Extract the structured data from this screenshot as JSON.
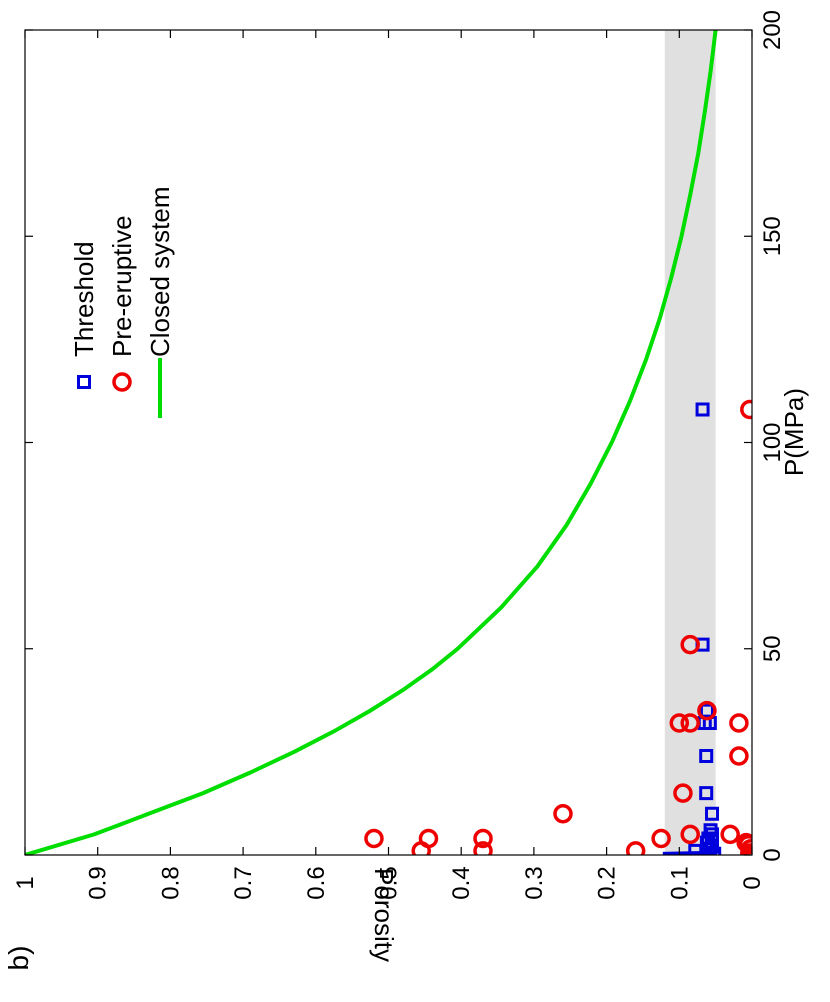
{
  "panel_label": "b)",
  "chart_data": {
    "type": "scatter",
    "orientation": "rotated-90-ccw",
    "title": "",
    "xlabel": "P(MPa)",
    "ylabel": "Porosity",
    "xlim": [
      0,
      200
    ],
    "ylim": [
      0,
      1
    ],
    "x_ticks": [
      0,
      50,
      100,
      150,
      200
    ],
    "y_ticks": [
      0,
      0.1,
      0.2,
      0.3,
      0.4,
      0.5,
      0.6,
      0.7,
      0.8,
      0.9,
      1
    ],
    "y_tick_labels": [
      "0",
      "0.1",
      "0.2",
      "0.3",
      "0.4",
      "0.5",
      "0.6",
      "0.7",
      "0.8",
      "0.9",
      "1"
    ],
    "x_tick_labels": [
      "0",
      "50",
      "100",
      "150",
      "200"
    ],
    "grid": false,
    "legend_position": "top-right",
    "shaded_band": {
      "y_from": 0.05,
      "y_to": 0.12,
      "color": "#e0e0e0"
    },
    "series": [
      {
        "name": "Threshold",
        "marker": "square",
        "color": "#0000dd",
        "points": [
          [
            108,
            0.068
          ],
          [
            51,
            0.068
          ],
          [
            35,
            0.062
          ],
          [
            32,
            0.065
          ],
          [
            32,
            0.058
          ],
          [
            24,
            0.063
          ],
          [
            15,
            0.063
          ],
          [
            10,
            0.055
          ],
          [
            6,
            0.057
          ],
          [
            5,
            0.055
          ],
          [
            4,
            0.06
          ],
          [
            3,
            0.062
          ],
          [
            2,
            0.055
          ],
          [
            1.5,
            0.058
          ],
          [
            1,
            0.078
          ],
          [
            0.5,
            0.06
          ],
          [
            0.3,
            0.052
          ]
        ]
      },
      {
        "name": "Pre-eruptive",
        "marker": "circle",
        "color": "#ee0000",
        "points": [
          [
            108,
            0.003
          ],
          [
            51,
            0.085
          ],
          [
            35,
            0.062
          ],
          [
            32,
            0.1
          ],
          [
            32,
            0.018
          ],
          [
            32,
            0.085
          ],
          [
            24,
            0.018
          ],
          [
            15,
            0.095
          ],
          [
            10,
            0.26
          ],
          [
            5,
            0.085
          ],
          [
            5,
            0.03
          ],
          [
            4,
            0.52
          ],
          [
            4,
            0.445
          ],
          [
            4,
            0.37
          ],
          [
            4,
            0.125
          ],
          [
            3,
            0.008
          ],
          [
            2.5,
            0.005
          ],
          [
            1.5,
            0.002
          ],
          [
            1,
            0.455
          ],
          [
            1,
            0.37
          ],
          [
            1,
            0.16
          ],
          [
            0.5,
            0.003
          ],
          [
            0.2,
            0.002
          ],
          [
            0,
            0.0
          ]
        ]
      },
      {
        "name": "Closed system",
        "type": "line",
        "color": "#00dd00",
        "points": [
          [
            0,
            1.0
          ],
          [
            5,
            0.905
          ],
          [
            10,
            0.83
          ],
          [
            15,
            0.755
          ],
          [
            20,
            0.69
          ],
          [
            25,
            0.63
          ],
          [
            30,
            0.575
          ],
          [
            35,
            0.525
          ],
          [
            40,
            0.48
          ],
          [
            45,
            0.44
          ],
          [
            50,
            0.405
          ],
          [
            60,
            0.345
          ],
          [
            70,
            0.295
          ],
          [
            80,
            0.255
          ],
          [
            90,
            0.222
          ],
          [
            100,
            0.193
          ],
          [
            110,
            0.168
          ],
          [
            120,
            0.146
          ],
          [
            130,
            0.127
          ],
          [
            140,
            0.111
          ],
          [
            150,
            0.097
          ],
          [
            160,
            0.085
          ],
          [
            170,
            0.074
          ],
          [
            180,
            0.065
          ],
          [
            190,
            0.057
          ],
          [
            200,
            0.05
          ]
        ]
      },
      {
        "name": "",
        "type": "line",
        "color": "#0000dd",
        "legend": false,
        "points": [
          [
            0,
            0.12
          ],
          [
            0.3,
            0.12
          ],
          [
            0.5,
            0.06
          ],
          [
            1,
            0.058
          ],
          [
            2,
            0.055
          ],
          [
            5,
            0.055
          ]
        ]
      }
    ]
  }
}
